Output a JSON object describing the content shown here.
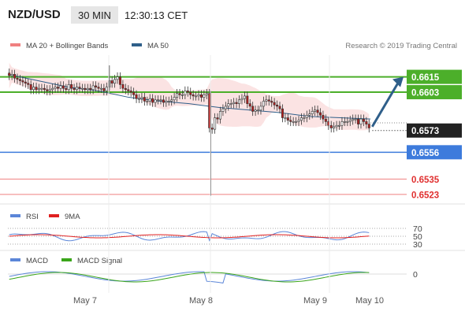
{
  "header": {
    "symbol": "NZD/USD",
    "timeframe": "30 MIN",
    "time": "12:30:13 CET"
  },
  "legend_main": [
    {
      "label": "MA 20 + Bollinger Bands",
      "color": "#f08080"
    },
    {
      "label": "MA 50",
      "color": "#2f5f8a"
    }
  ],
  "copyright": "Research © 2019 Trading Central",
  "colors": {
    "green": "#4caf2a",
    "blue": "#3d7bdc",
    "red": "#ef7f7f",
    "dark": "#222222",
    "arrow": "#2f5f8a",
    "bb_fill": "#fbe3e3",
    "candle_up": "#ffffff",
    "candle_down": "#b21e1e",
    "grid": "#ececec"
  },
  "levels": [
    {
      "value": 0.6615,
      "label": "0.6615",
      "style": "green-box"
    },
    {
      "value": 0.6603,
      "label": "0.6603",
      "style": "green-box"
    },
    {
      "value": 0.6573,
      "label": "0.6573",
      "style": "dark-box"
    },
    {
      "value": 0.6556,
      "label": "0.6556",
      "style": "blue-box"
    },
    {
      "value": 0.6535,
      "label": "0.6535",
      "style": "red-text"
    },
    {
      "value": 0.6523,
      "label": "0.6523",
      "style": "red-text"
    }
  ],
  "rsi_panel": {
    "legend": [
      {
        "label": "RSI",
        "color": "#5b86d8"
      },
      {
        "label": "9MA",
        "color": "#e02020"
      }
    ],
    "ticks": [
      "70",
      "50",
      "30"
    ]
  },
  "macd_panel": {
    "legend": [
      {
        "label": "MACD",
        "color": "#5b86d8"
      },
      {
        "label": "MACD Signal",
        "color": "#3aa51a"
      }
    ],
    "ticks": [
      "0"
    ]
  },
  "x_labels": [
    "May 7",
    "May 8",
    "May 9",
    "May 10"
  ],
  "chart_data": {
    "type": "candlestick",
    "title": "NZD/USD",
    "timeframe": "30 MIN",
    "ylim": [
      0.6518,
      0.6632
    ],
    "current_price": 0.6573,
    "ohlc_note": "approximate candle closes read from chart",
    "closes": [
      0.6616,
      0.6617,
      0.6614,
      0.6613,
      0.6612,
      0.6611,
      0.661,
      0.6609,
      0.6605,
      0.6607,
      0.6605,
      0.6606,
      0.6606,
      0.6605,
      0.6604,
      0.6605,
      0.6606,
      0.6607,
      0.6606,
      0.6608,
      0.6606,
      0.6605,
      0.6609,
      0.6606,
      0.6605,
      0.6607,
      0.6606,
      0.6606,
      0.6605,
      0.6606,
      0.6605,
      0.6608,
      0.6607,
      0.6606,
      0.6606,
      0.6604,
      0.6607,
      0.6612,
      0.661,
      0.6613,
      0.6615,
      0.6609,
      0.6606,
      0.6605,
      0.6604,
      0.6603,
      0.6601,
      0.6598,
      0.6598,
      0.6599,
      0.6596,
      0.6596,
      0.6598,
      0.6595,
      0.6597,
      0.6597,
      0.6597,
      0.6595,
      0.6596,
      0.6596,
      0.6597,
      0.6599,
      0.6602,
      0.6601,
      0.6601,
      0.6604,
      0.6603,
      0.6601,
      0.66,
      0.66,
      0.6601,
      0.6599,
      0.6601,
      0.6602,
      0.6575,
      0.6574,
      0.6583,
      0.6582,
      0.6588,
      0.659,
      0.6592,
      0.6594,
      0.6594,
      0.6595,
      0.6594,
      0.6597,
      0.6598,
      0.66,
      0.6594,
      0.6592,
      0.6588,
      0.6589,
      0.6589,
      0.6592,
      0.6596,
      0.6597,
      0.6596,
      0.6595,
      0.6593,
      0.6592,
      0.659,
      0.6583,
      0.6583,
      0.6581,
      0.658,
      0.658,
      0.658,
      0.6581,
      0.6583,
      0.6583,
      0.6585,
      0.6586,
      0.6588,
      0.6589,
      0.6587,
      0.6585,
      0.6582,
      0.658,
      0.6577,
      0.6575,
      0.6576,
      0.6577,
      0.6577,
      0.658,
      0.658,
      0.658,
      0.6581,
      0.6582,
      0.6582,
      0.6578,
      0.6582,
      0.658,
      0.6578,
      0.6575
    ],
    "ma50_anchor": [
      0.6617,
      0.6612,
      0.6607,
      0.6604,
      0.6599,
      0.6596,
      0.6594,
      0.6591,
      0.6589,
      0.6587,
      0.6584,
      0.6583,
      0.6582
    ],
    "forecast_target": 0.6615,
    "rsi_ticks": [
      70,
      50,
      30
    ],
    "macd_ticks": [
      0
    ],
    "x_labels": [
      "May 7",
      "May 8",
      "May 9",
      "May 10"
    ]
  }
}
